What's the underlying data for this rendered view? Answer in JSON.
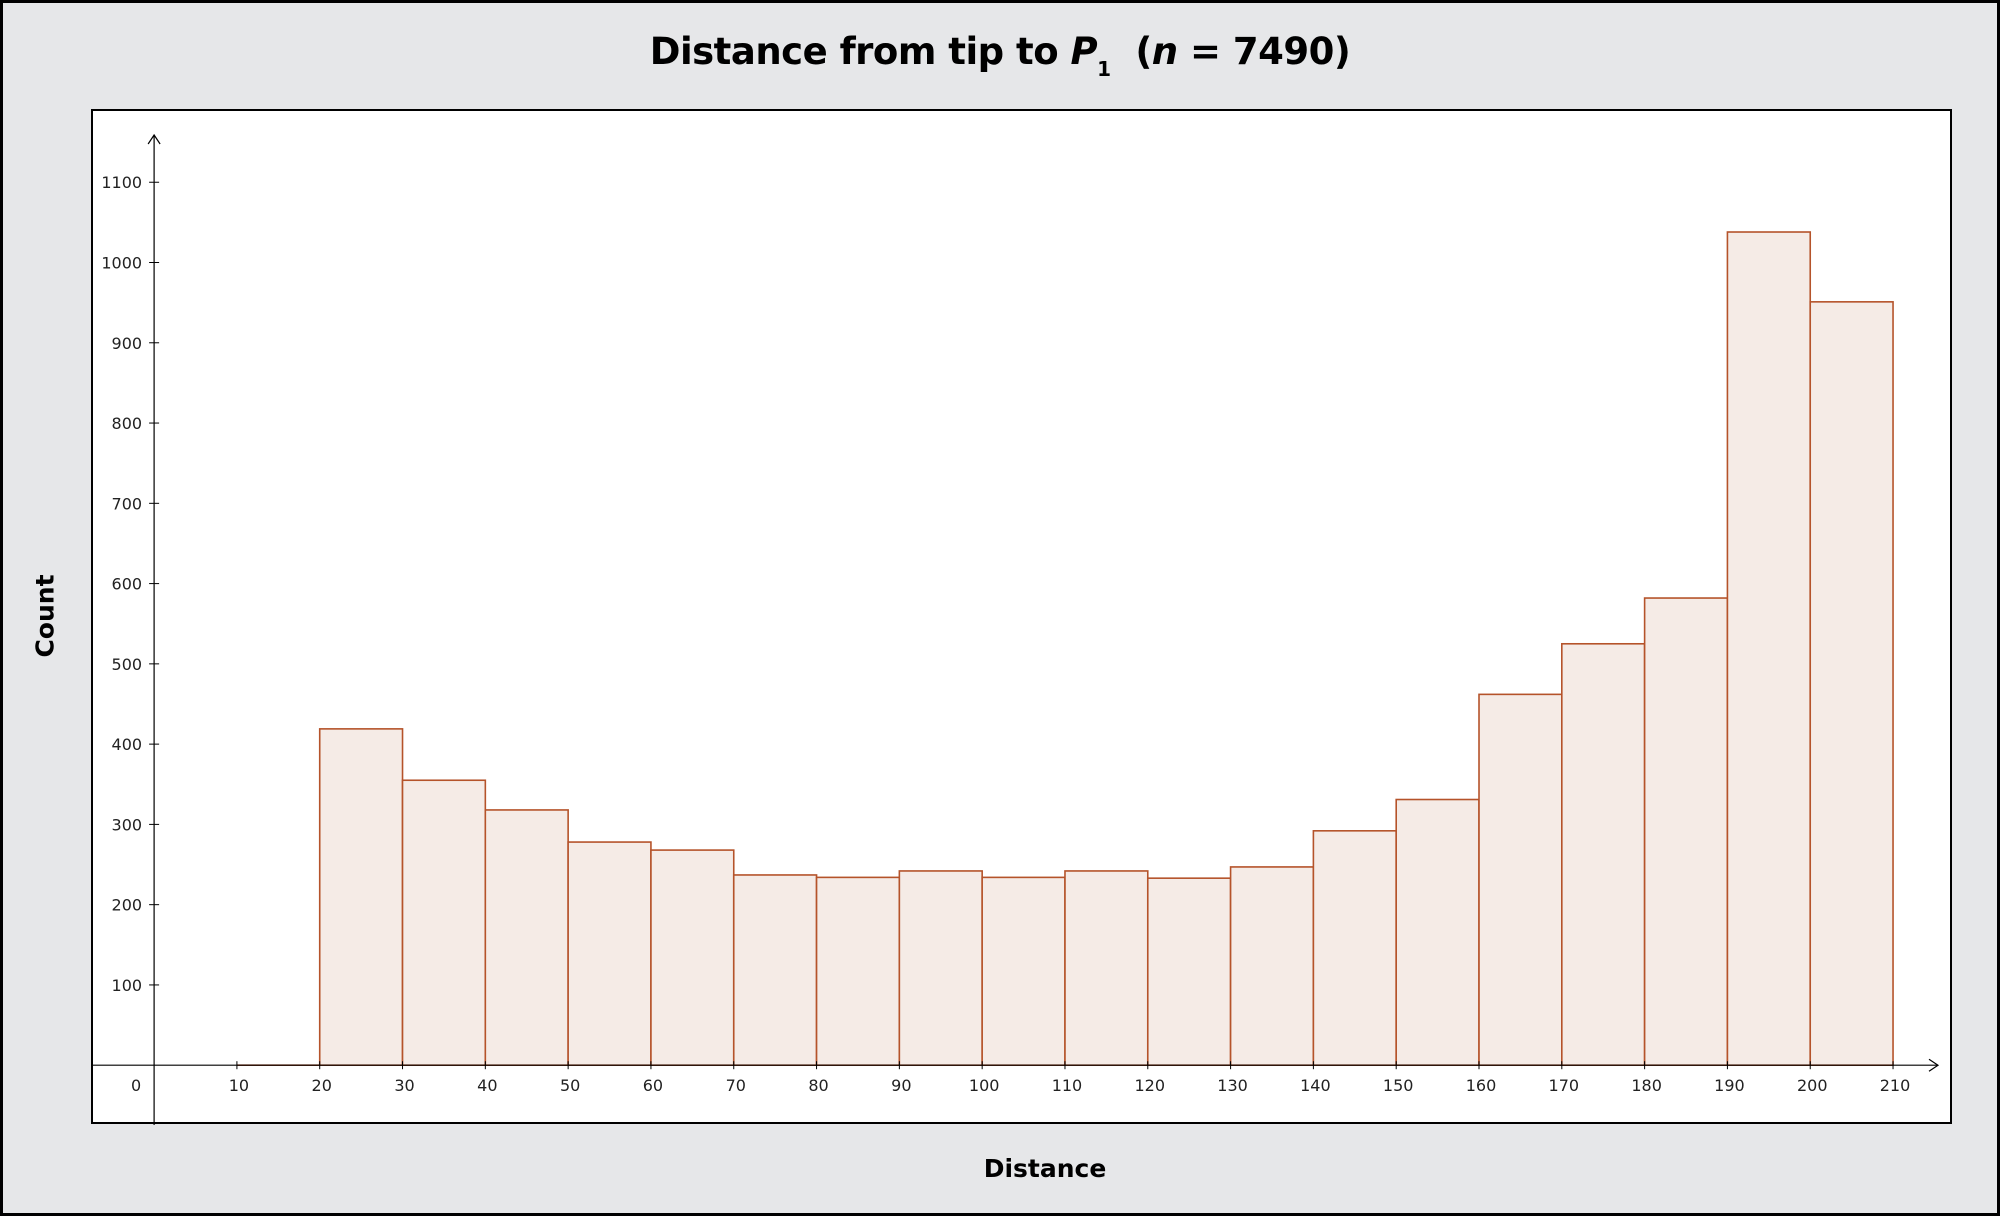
{
  "chart_data": {
    "type": "bar",
    "title_prefix": "Distance from tip to ",
    "title_var": "P",
    "title_sub": "1",
    "title_n_open": "(",
    "title_n_var": "n",
    "title_n_rest": " = 7490)",
    "xlabel": "Distance",
    "ylabel": "Count",
    "bin_width": 10,
    "bins": [
      {
        "x0": 10,
        "x1": 20,
        "count": 0
      },
      {
        "x0": 20,
        "x1": 30,
        "count": 419
      },
      {
        "x0": 30,
        "x1": 40,
        "count": 355
      },
      {
        "x0": 40,
        "x1": 50,
        "count": 318
      },
      {
        "x0": 50,
        "x1": 60,
        "count": 278
      },
      {
        "x0": 60,
        "x1": 70,
        "count": 268
      },
      {
        "x0": 70,
        "x1": 80,
        "count": 237
      },
      {
        "x0": 80,
        "x1": 90,
        "count": 234
      },
      {
        "x0": 90,
        "x1": 100,
        "count": 242
      },
      {
        "x0": 100,
        "x1": 110,
        "count": 234
      },
      {
        "x0": 110,
        "x1": 120,
        "count": 242
      },
      {
        "x0": 120,
        "x1": 130,
        "count": 233
      },
      {
        "x0": 130,
        "x1": 140,
        "count": 247
      },
      {
        "x0": 140,
        "x1": 150,
        "count": 292
      },
      {
        "x0": 150,
        "x1": 160,
        "count": 331
      },
      {
        "x0": 160,
        "x1": 170,
        "count": 462
      },
      {
        "x0": 170,
        "x1": 180,
        "count": 525
      },
      {
        "x0": 180,
        "x1": 190,
        "count": 582
      },
      {
        "x0": 190,
        "x1": 200,
        "count": 1038
      },
      {
        "x0": 200,
        "x1": 210,
        "count": 951
      }
    ],
    "x_ticks": [
      0,
      10,
      20,
      30,
      40,
      50,
      60,
      70,
      80,
      90,
      100,
      110,
      120,
      130,
      140,
      150,
      160,
      170,
      180,
      190,
      200,
      210
    ],
    "y_ticks": [
      100,
      200,
      300,
      400,
      500,
      600,
      700,
      800,
      900,
      1000,
      1100
    ],
    "xlim": [
      -7.5,
      217
    ],
    "ylim": [
      -72,
      1190
    ],
    "bar_fill": "#f5ebe6",
    "bar_stroke": "#b5532a",
    "grid": false,
    "legend": "none"
  }
}
